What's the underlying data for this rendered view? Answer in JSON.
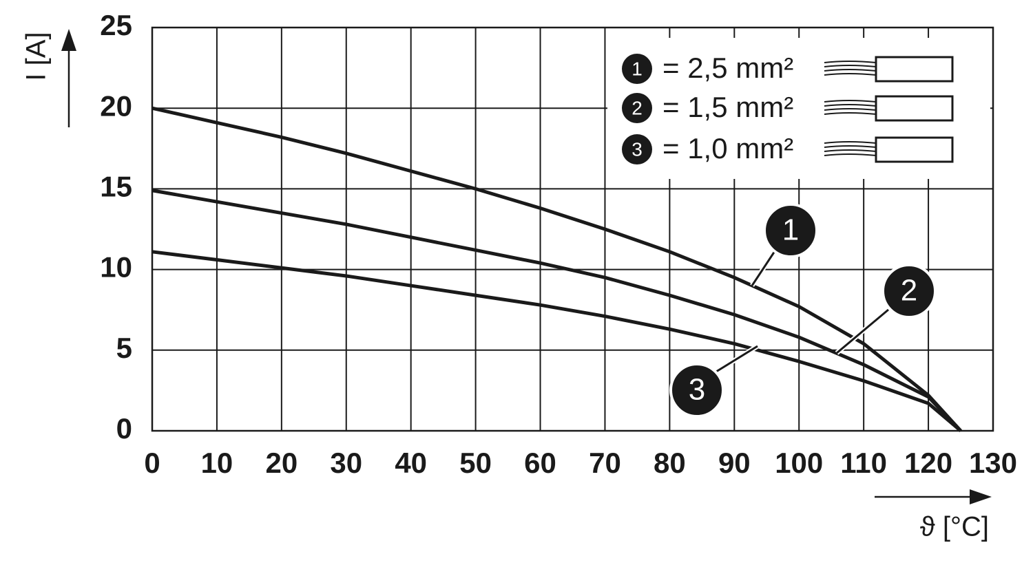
{
  "chart_data": {
    "type": "line",
    "y_label": "I [A]",
    "x_label": "ϑ [°C]",
    "x": [
      0,
      10,
      20,
      30,
      40,
      50,
      60,
      70,
      80,
      90,
      100,
      110,
      120,
      125
    ],
    "series": [
      {
        "marker": "1",
        "name": "= 2,5 mm²",
        "color": "#1a1a1a",
        "values": [
          20,
          19.1,
          18.2,
          17.2,
          16.1,
          15.0,
          13.8,
          12.5,
          11.1,
          9.5,
          7.7,
          5.4,
          2.2,
          0
        ]
      },
      {
        "marker": "2",
        "name": "= 1,5 mm²",
        "color": "#1a1a1a",
        "values": [
          14.9,
          14.2,
          13.5,
          12.8,
          12.0,
          11.2,
          10.4,
          9.5,
          8.4,
          7.2,
          5.8,
          4.1,
          2.1,
          0
        ]
      },
      {
        "marker": "3",
        "name": "= 1,0 mm²",
        "color": "#1a1a1a",
        "values": [
          11.1,
          10.6,
          10.1,
          9.6,
          9.0,
          8.4,
          7.8,
          7.1,
          6.3,
          5.4,
          4.3,
          3.1,
          1.7,
          0
        ]
      }
    ],
    "xlim": [
      0,
      130
    ],
    "ylim": [
      0,
      25
    ],
    "xticks": [
      0,
      10,
      20,
      30,
      40,
      50,
      60,
      70,
      80,
      90,
      100,
      110,
      120,
      130
    ],
    "yticks": [
      0,
      5,
      10,
      15,
      20,
      25
    ],
    "grid": true,
    "legend": "upper right"
  }
}
